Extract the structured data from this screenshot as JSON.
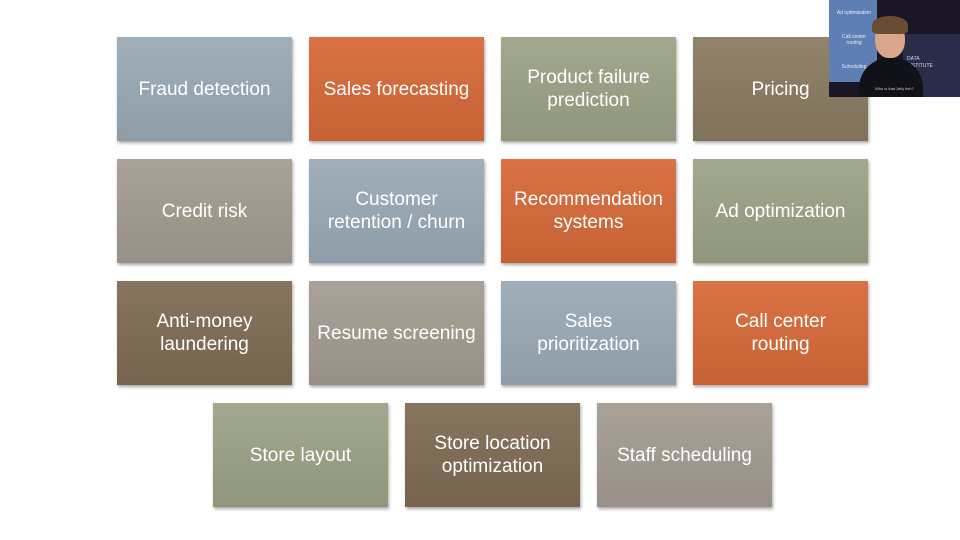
{
  "tiles": [
    {
      "label": "Fraud detection",
      "color": "#9aaab5"
    },
    {
      "label": "Sales forecasting",
      "color": "#d76a3a"
    },
    {
      "label": "Product failure\nprediction",
      "color": "#9ca387"
    },
    {
      "label": "Pricing",
      "color": "#8b7c62"
    },
    {
      "label": "Credit risk",
      "color": "#a49c91"
    },
    {
      "label": "Customer\nretention / churn",
      "color": "#9aaab5"
    },
    {
      "label": "Recommendation\nsystems",
      "color": "#d76a3a"
    },
    {
      "label": "Ad optimization",
      "color": "#9ca387"
    },
    {
      "label": "Anti-money\nlaundering",
      "color": "#7f6c55"
    },
    {
      "label": "Resume screening",
      "color": "#a49c91"
    },
    {
      "label": "Sales\nprioritization",
      "color": "#9aaab5"
    },
    {
      "label": "Call center\nrouting",
      "color": "#d76a3a"
    },
    {
      "label": "Store layout",
      "color": "#9ca387"
    },
    {
      "label": "Store location\noptimization",
      "color": "#7f6c55"
    },
    {
      "label": "Staff scheduling",
      "color": "#a49c91"
    }
  ],
  "webcam": {
    "screen_items": [
      "Ad optimization",
      "Call center\nrouting",
      "Scheduling"
    ],
    "banner_text": "DATA\nINSTITUTE",
    "shirt_text": "Who is that Jelly fish?"
  }
}
